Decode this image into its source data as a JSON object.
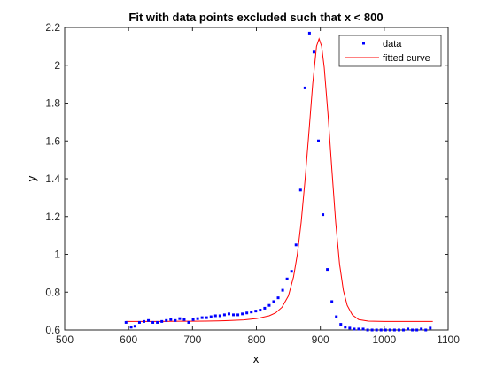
{
  "chart_data": {
    "type": "scatter",
    "title": "Fit with data points excluded such that x < 800",
    "xlabel": "x",
    "ylabel": "y",
    "xlim": [
      500,
      1100
    ],
    "ylim": [
      0.6,
      2.2
    ],
    "x_ticks": [
      500,
      600,
      700,
      800,
      900,
      1000,
      1100
    ],
    "y_ticks": [
      0.6,
      0.8,
      1.0,
      1.2,
      1.4,
      1.6,
      1.8,
      2.0,
      2.2
    ],
    "x_tick_labels": [
      "500",
      "600",
      "700",
      "800",
      "900",
      "1000",
      "1100"
    ],
    "y_tick_labels": [
      "0.6",
      "0.8",
      "1",
      "1.2",
      "1.4",
      "1.6",
      "1.8",
      "2",
      "2.2"
    ],
    "grid": false,
    "legend_position": "top-right",
    "series": [
      {
        "name": "data",
        "kind": "points",
        "color": "#0000ff",
        "x": [
          596,
          604,
          610,
          617,
          624,
          631,
          638,
          645,
          652,
          659,
          666,
          673,
          680,
          687,
          694,
          701,
          708,
          715,
          722,
          729,
          736,
          743,
          750,
          757,
          764,
          771,
          778,
          785,
          792,
          799,
          806,
          813,
          820,
          827,
          834,
          841,
          848,
          855,
          862,
          869,
          876,
          883,
          890,
          897,
          904,
          911,
          918,
          925,
          932,
          939,
          946,
          953,
          960,
          967,
          974,
          981,
          988,
          995,
          1002,
          1009,
          1016,
          1023,
          1030,
          1037,
          1044,
          1051,
          1058,
          1065,
          1072
        ],
        "y": [
          0.64,
          0.615,
          0.62,
          0.64,
          0.645,
          0.65,
          0.64,
          0.64,
          0.645,
          0.65,
          0.655,
          0.65,
          0.66,
          0.655,
          0.64,
          0.655,
          0.66,
          0.665,
          0.665,
          0.67,
          0.675,
          0.675,
          0.68,
          0.685,
          0.68,
          0.68,
          0.685,
          0.69,
          0.695,
          0.7,
          0.705,
          0.715,
          0.73,
          0.75,
          0.77,
          0.81,
          0.87,
          0.91,
          1.05,
          1.34,
          1.88,
          2.17,
          2.07,
          1.6,
          1.21,
          0.92,
          0.75,
          0.67,
          0.63,
          0.615,
          0.61,
          0.605,
          0.605,
          0.605,
          0.6,
          0.6,
          0.6,
          0.6,
          0.6,
          0.6,
          0.6,
          0.6,
          0.6,
          0.605,
          0.6,
          0.6,
          0.605,
          0.6,
          0.61
        ]
      },
      {
        "name": "fitted curve",
        "kind": "line",
        "color": "#ff0000",
        "x": [
          596,
          620,
          650,
          680,
          700,
          720,
          740,
          760,
          780,
          800,
          820,
          830,
          840,
          850,
          858,
          864,
          870,
          876,
          882,
          888,
          894,
          898,
          902,
          906,
          912,
          918,
          924,
          930,
          936,
          942,
          950,
          960,
          975,
          1000,
          1030,
          1076
        ],
        "y": [
          0.645,
          0.645,
          0.645,
          0.646,
          0.646,
          0.647,
          0.648,
          0.65,
          0.653,
          0.66,
          0.675,
          0.69,
          0.72,
          0.78,
          0.88,
          1.0,
          1.17,
          1.39,
          1.64,
          1.9,
          2.1,
          2.14,
          2.1,
          1.99,
          1.74,
          1.45,
          1.17,
          0.95,
          0.81,
          0.73,
          0.68,
          0.655,
          0.647,
          0.645,
          0.645,
          0.645
        ]
      }
    ]
  }
}
